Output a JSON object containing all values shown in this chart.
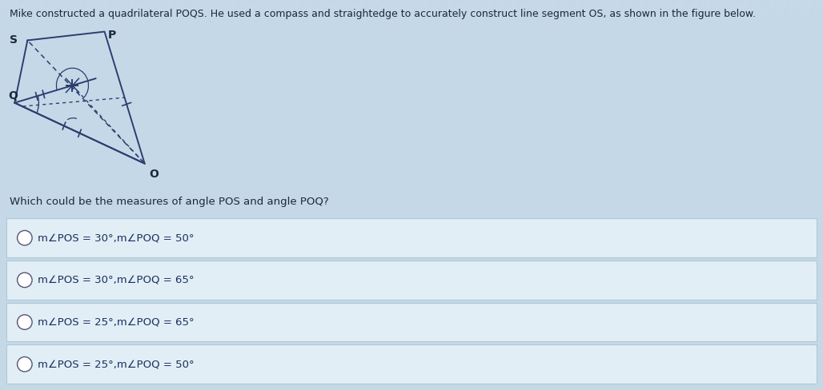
{
  "title": "Mike constructed a quadrilateral POQS. He used a compass and straightedge to accurately construct line segment OS, as shown in the figure below.",
  "question": "Which could be the measures of angle POS and angle POQ?",
  "options": [
    "m∠POS = 30°,m∠POQ = 50°",
    "m∠POS = 30°,m∠POQ = 65°",
    "m∠POS = 25°,m∠POQ = 65°",
    "m∠POS = 25°,m∠POQ = 50°"
  ],
  "bg_color_top": "#c5d9e8",
  "bg_color_stripe_light": "#d4e8f0",
  "bg_color_stripe_dark": "#b8cfe0",
  "figure_bg": "#cfe2ef",
  "option_bg": "#e2eef5",
  "option_border": "#aec8d8",
  "text_color": "#1a2a3a",
  "option_text_color": "#1a3060",
  "title_fontsize": 9.0,
  "question_fontsize": 9.5,
  "option_fontsize": 9.5
}
